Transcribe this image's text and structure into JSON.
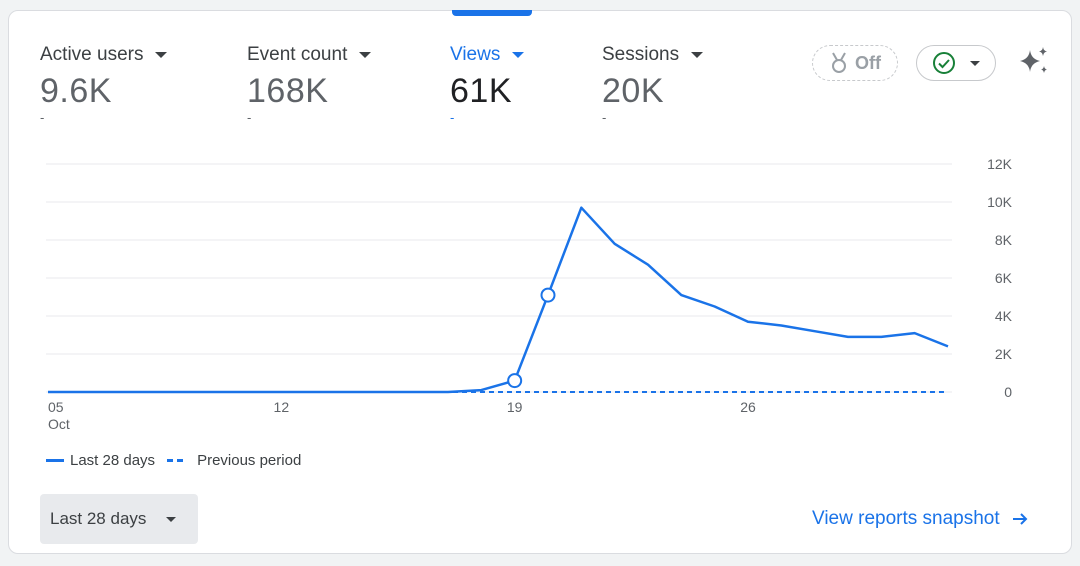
{
  "metrics": [
    {
      "label": "Active users",
      "value": "9.6K",
      "sub": "-"
    },
    {
      "label": "Event count",
      "value": "168K",
      "sub": "-"
    },
    {
      "label": "Views",
      "value": "61K",
      "sub": "-"
    },
    {
      "label": "Sessions",
      "value": "20K",
      "sub": "-"
    }
  ],
  "active_metric": "Views",
  "toolbar": {
    "anomaly_label": "Off"
  },
  "colors": {
    "accent": "#1a73e8",
    "grid": "#e8eaed",
    "success": "#188038",
    "text": "#3c4043"
  },
  "legend": {
    "current": "Last 28 days",
    "previous": "Previous period"
  },
  "date_range": {
    "label": "Last 28 days"
  },
  "footer": {
    "link_label": "View reports snapshot"
  },
  "chart_data": {
    "type": "line",
    "title": "",
    "xlabel": "",
    "ylabel": "",
    "x_tick_labels": [
      "05",
      "12",
      "19",
      "26"
    ],
    "x_tick_sublabels": [
      "Oct",
      "",
      "",
      ""
    ],
    "y_tick_labels": [
      "0",
      "2K",
      "4K",
      "6K",
      "8K",
      "10K",
      "12K"
    ],
    "ylim": [
      0,
      12000
    ],
    "y_axis_side": "right",
    "grid": true,
    "legend_position": "bottom-left",
    "x": [
      "Oct 05",
      "Oct 06",
      "Oct 07",
      "Oct 08",
      "Oct 09",
      "Oct 10",
      "Oct 11",
      "Oct 12",
      "Oct 13",
      "Oct 14",
      "Oct 15",
      "Oct 16",
      "Oct 17",
      "Oct 18",
      "Oct 19",
      "Oct 20",
      "Oct 21",
      "Oct 22",
      "Oct 23",
      "Oct 24",
      "Oct 25",
      "Oct 26",
      "Oct 27",
      "Oct 28",
      "Oct 29",
      "Oct 30",
      "Oct 31",
      "Nov 01"
    ],
    "series": [
      {
        "name": "Last 28 days",
        "style": "solid",
        "values": [
          0,
          0,
          0,
          0,
          0,
          0,
          0,
          0,
          0,
          0,
          0,
          0,
          0,
          100,
          600,
          5100,
          9700,
          7800,
          6700,
          5100,
          4500,
          3700,
          3500,
          3200,
          2900,
          2900,
          3100,
          2400
        ],
        "markers": [
          14,
          15
        ]
      },
      {
        "name": "Previous period",
        "style": "dashed",
        "values": [
          0,
          0,
          0,
          0,
          0,
          0,
          0,
          0,
          0,
          0,
          0,
          0,
          0,
          0,
          0,
          0,
          0,
          0,
          0,
          0,
          0,
          0,
          0,
          0,
          0,
          0,
          0,
          0
        ]
      }
    ]
  }
}
